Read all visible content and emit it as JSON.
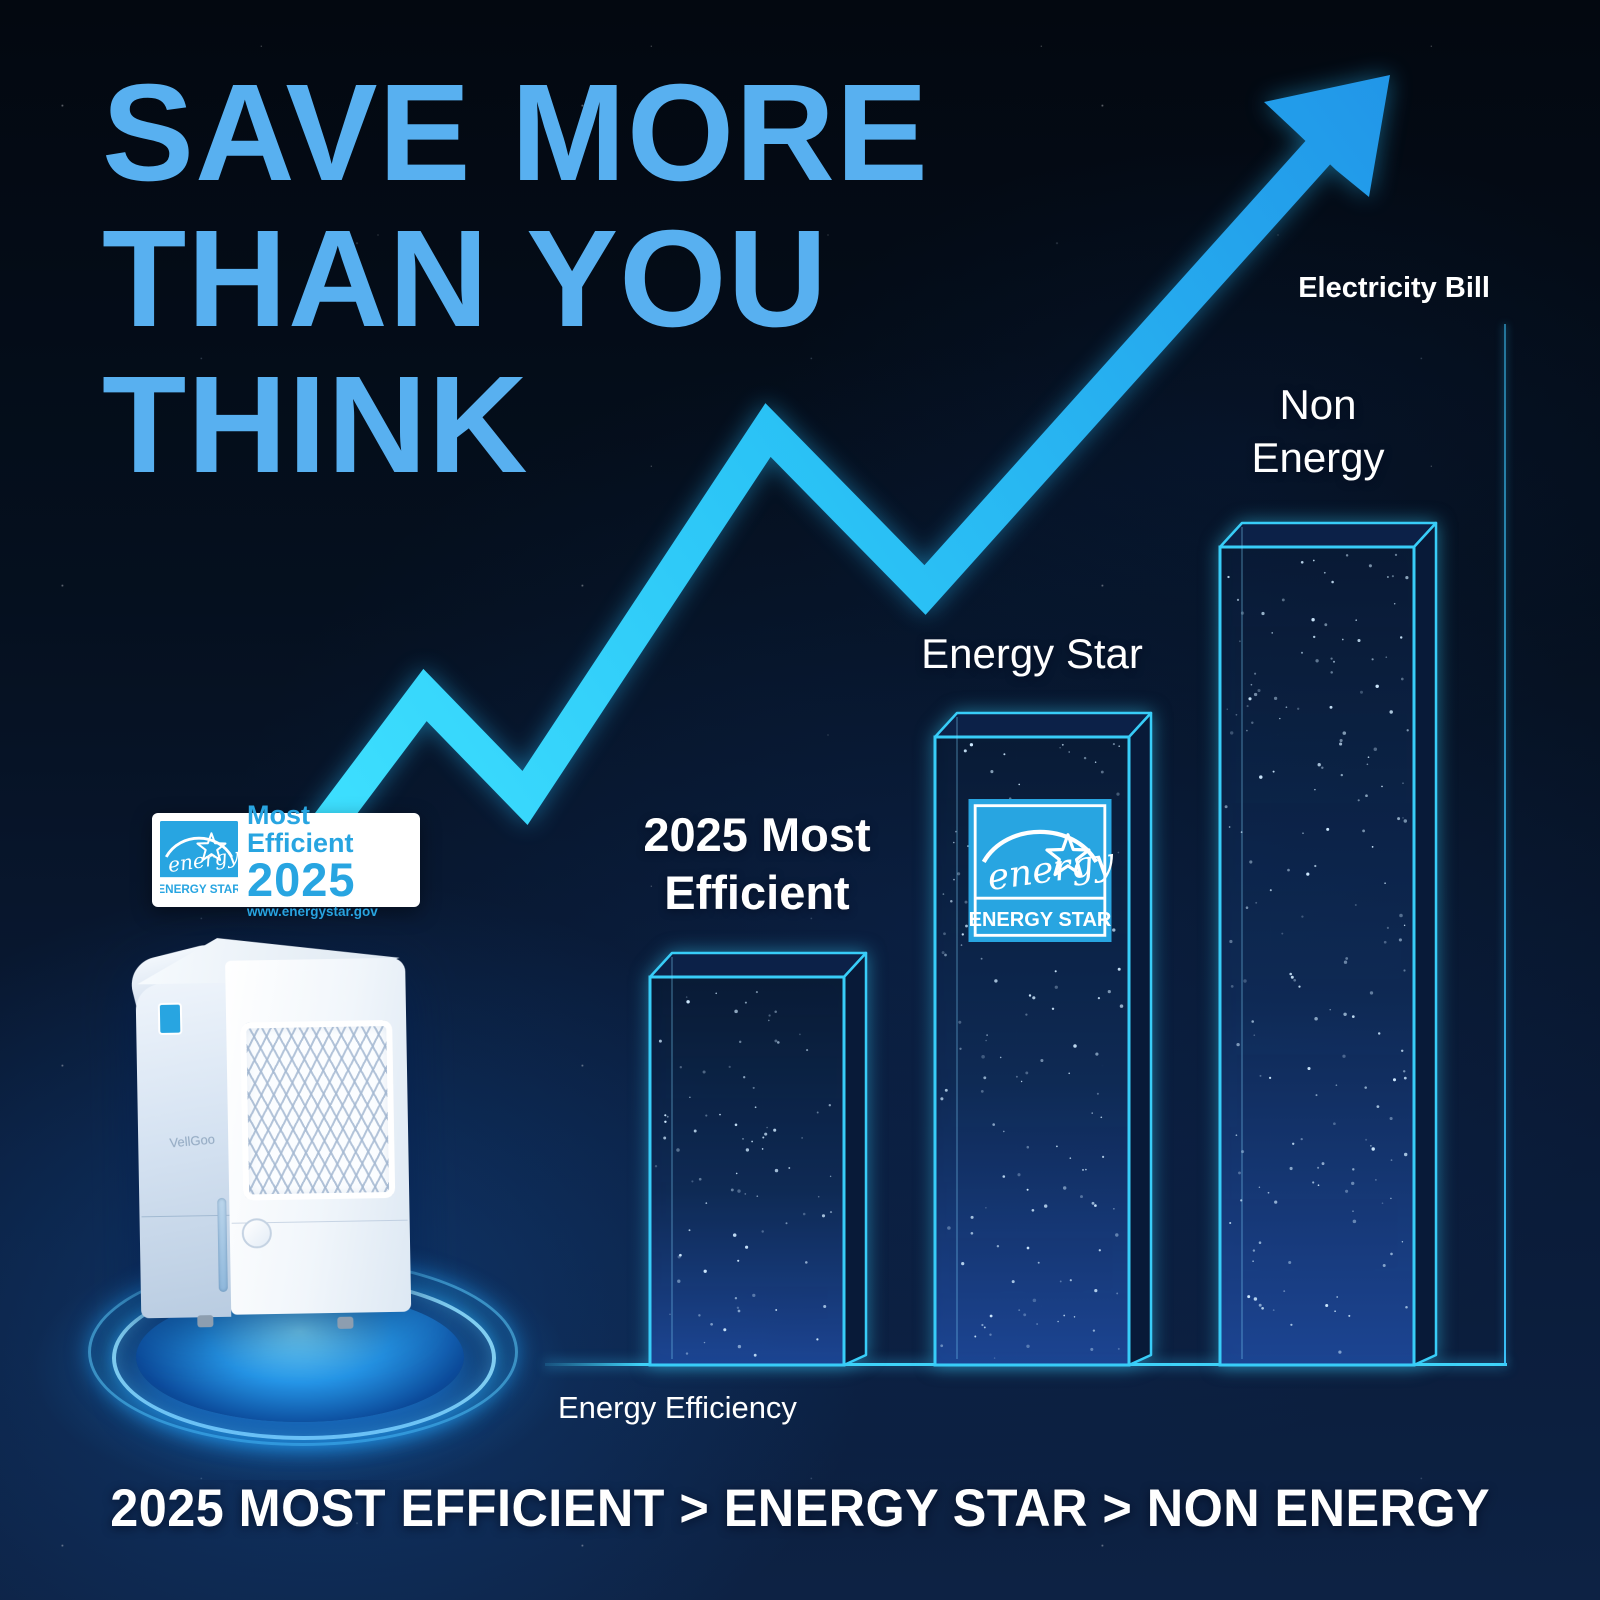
{
  "poster": {
    "headline_lines": [
      "SAVE MORE",
      "THAN YOU",
      "THINK"
    ],
    "bottom_tagline": "2025 MOST EFFICIENT > ENERGY STAR > NON ENERGY",
    "colors": {
      "headline": "#58b0f0",
      "arrow-start": "#3fe2ff",
      "arrow-mid": "#2bc4f6",
      "arrow-end": "#2196e8",
      "bar-outline": "#38cdf8",
      "es-blue": "#28a5e1",
      "background": "#050d1d",
      "text-white": "#ffffff"
    }
  },
  "energy_star_badge": {
    "title": "Most Efficient",
    "year": "2025",
    "website": "www.energystar.gov",
    "logo_script": "energy",
    "logo_caption": "ENERGY STAR"
  },
  "bar_logo": {
    "logo_script": "energy",
    "logo_caption": "ENERGY STAR"
  },
  "product": {
    "brand": "VellGoo"
  },
  "chart_data": {
    "type": "bar",
    "title": "",
    "xlabel": "Energy Efficiency",
    "ylabel": "Electricity Bill",
    "categories": [
      "2025 Most Efficient",
      "Energy Star",
      "Non Energy"
    ],
    "values": [
      1.0,
      1.62,
      2.11
    ],
    "value_note": "relative electricity-bill bar heights; chart has no numeric scale",
    "bar_label_lines": [
      [
        "2025 Most",
        "Efficient"
      ],
      [
        "Energy Star"
      ],
      [
        "Non",
        "Energy"
      ]
    ],
    "axis": {
      "y_side": "right",
      "grid": false,
      "numeric_ticks": false
    },
    "legend": []
  }
}
